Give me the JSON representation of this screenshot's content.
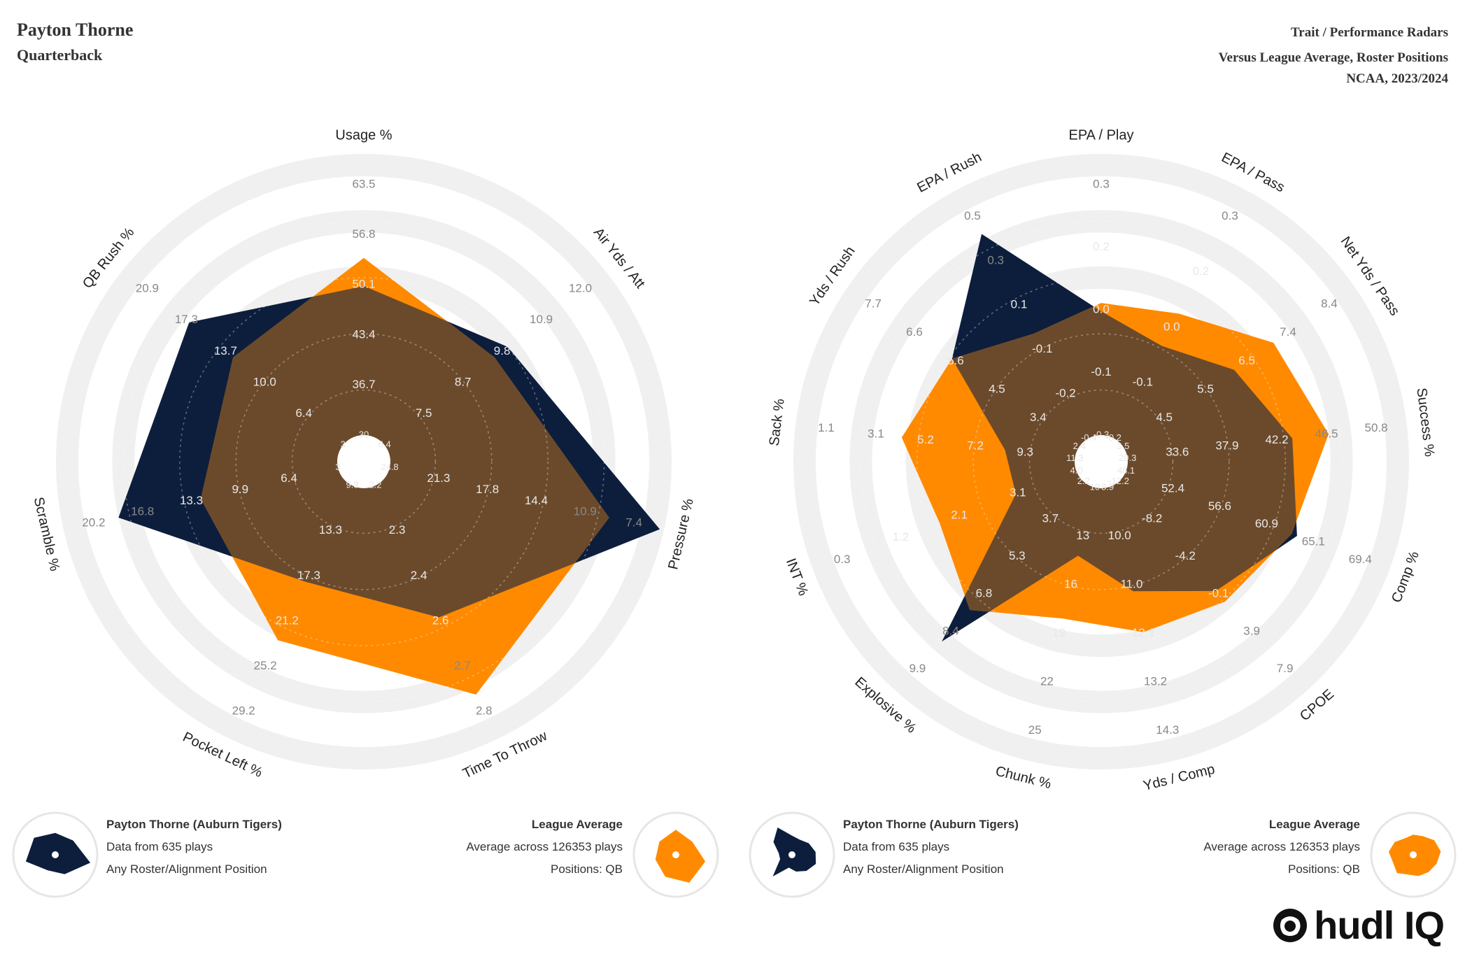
{
  "header": {
    "player_name": "Payton Thorne",
    "position": "Quarterback",
    "title": "Trait / Performance Radars",
    "subtitle": "Versus League Average, Roster Positions",
    "season": "NCAA, 2023/2024"
  },
  "colors": {
    "player": "#0d1e3d",
    "league": "#ff8a00",
    "overlap": "#6b4a2b",
    "ring": "#f0f0f0"
  },
  "legend": {
    "player_title": "Payton Thorne (Auburn Tigers)",
    "player_line1": "Data from 635 plays",
    "player_line2": "Any Roster/Alignment Position",
    "league_title": "League Average",
    "league_line1": "Average across 126353 plays",
    "league_line2": "Positions: QB"
  },
  "brand": "hudl IQ",
  "chart_data": [
    {
      "type": "radar",
      "title": "Trait Radar",
      "axes": [
        "Usage %",
        "Air Yds / Att",
        "Pressure %",
        "Time To Throw",
        "Pocket Left %",
        "Scramble %",
        "QB Rush %"
      ],
      "ticks": [
        [
          "30",
          "36.7",
          "43.4",
          "50.1",
          "56.8",
          "63.5"
        ],
        [
          "6.4",
          "7.5",
          "8.7",
          "9.8",
          "10.9",
          "12.0"
        ],
        [
          "24.8",
          "21.3",
          "17.8",
          "14.4",
          "10.9",
          "7.4"
        ],
        [
          "2.2",
          "2.3",
          "2.4",
          "2.6",
          "2.7",
          "2.8"
        ],
        [
          "9.3",
          "13.3",
          "17.3",
          "21.2",
          "25.2",
          "29.2"
        ],
        [
          "3",
          "6.4",
          "9.9",
          "13.3",
          "16.8",
          "20.2"
        ],
        [
          "3",
          "6.4",
          "10.0",
          "13.7",
          "17.3",
          "20.9"
        ]
      ],
      "series": [
        {
          "name": "Payton Thorne (Auburn Tigers)",
          "values": [
            0.53,
            0.56,
            0.985,
            0.52,
            0.38,
            0.8,
            0.7
          ]
        },
        {
          "name": "League Average",
          "values": [
            0.63,
            0.5,
            0.8,
            0.825,
            0.61,
            0.5,
            0.5
          ]
        }
      ]
    },
    {
      "type": "radar",
      "title": "Performance Radar",
      "axes": [
        "EPA / Play",
        "EPA / Pass",
        "Net Yds / Pass",
        "Success %",
        "Comp %",
        "CPOE",
        "Yds / Comp",
        "Chunk %",
        "Explosive %",
        "INT %",
        "Sack %",
        "Yds / Rush",
        "EPA / Rush"
      ],
      "ticks": [
        [
          "-0.3",
          "-0.1",
          "0.0",
          "0.2",
          "0.3"
        ],
        [
          "-0.2",
          "-0.1",
          "0.0",
          "0.2",
          "0.3"
        ],
        [
          "3.5",
          "4.5",
          "5.5",
          "6.5",
          "7.4",
          "8.4"
        ],
        [
          "29.3",
          "33.6",
          "37.9",
          "42.2",
          "46.5",
          "50.8"
        ],
        [
          "48.1",
          "52.4",
          "56.6",
          "60.9",
          "65.1",
          "69.4"
        ],
        [
          "-12.2",
          "-8.2",
          "-4.2",
          "-0.1",
          "3.9",
          "7.9"
        ],
        [
          "8.9",
          "10.0",
          "11.0",
          "12.1",
          "13.2",
          "14.3"
        ],
        [
          "10",
          "13",
          "16",
          "19",
          "22",
          "25"
        ],
        [
          "2.2",
          "3.7",
          "5.3",
          "6.8",
          "8.4",
          "9.9"
        ],
        [
          "4.0",
          "3.1",
          "2.1",
          "1.2",
          "0.3"
        ],
        [
          "11.3",
          "9.3",
          "7.2",
          "5.2",
          "3.1",
          "1.1"
        ],
        [
          "2.4",
          "3.4",
          "4.5",
          "5.6",
          "6.6",
          "7.7"
        ],
        [
          "-0.4",
          "-0.2",
          "-0.1",
          "0.1",
          "0.3",
          "0.5"
        ]
      ],
      "series": [
        {
          "name": "Payton Thorne (Auburn Tigers)",
          "values": [
            0.44,
            0.37,
            0.48,
            0.59,
            0.65,
            0.52,
            0.38,
            0.25,
            0.76,
            0.23,
            0.25,
            0.55,
            0.82
          ]
        },
        {
          "name": "League Average",
          "values": [
            0.47,
            0.5,
            0.65,
            0.72,
            0.63,
            0.57,
            0.53,
            0.48,
            0.61,
            0.52,
            0.62,
            0.55,
            0.42
          ]
        }
      ]
    }
  ]
}
